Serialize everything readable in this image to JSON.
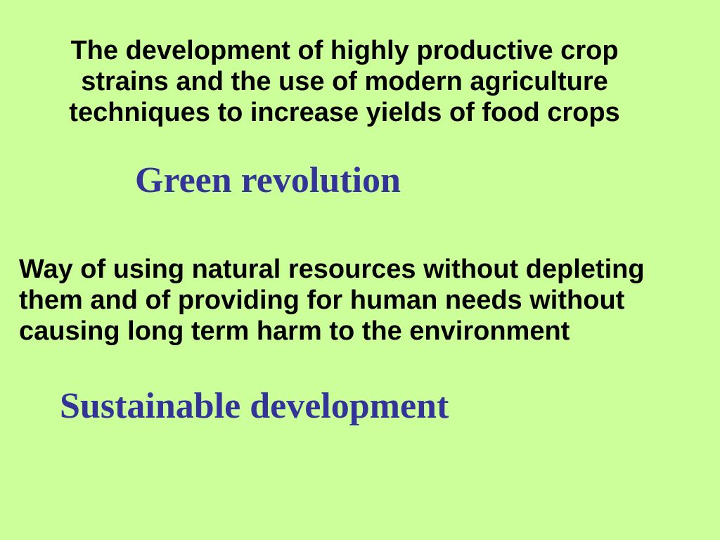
{
  "slide": {
    "background_color": "#CCFF99",
    "body_text_color": "#000000",
    "term_text_color": "#333399",
    "definition1": {
      "lines": [
        "The development of highly productive crop",
        "strains and the use of modern agriculture",
        "techniques to increase yields of food crops"
      ]
    },
    "term1": "Green revolution",
    "definition2": {
      "lines": [
        "Way of using natural resources without depleting",
        "them and of providing for human needs without",
        "causing long term harm to the environment"
      ]
    },
    "term2": "Sustainable development"
  }
}
